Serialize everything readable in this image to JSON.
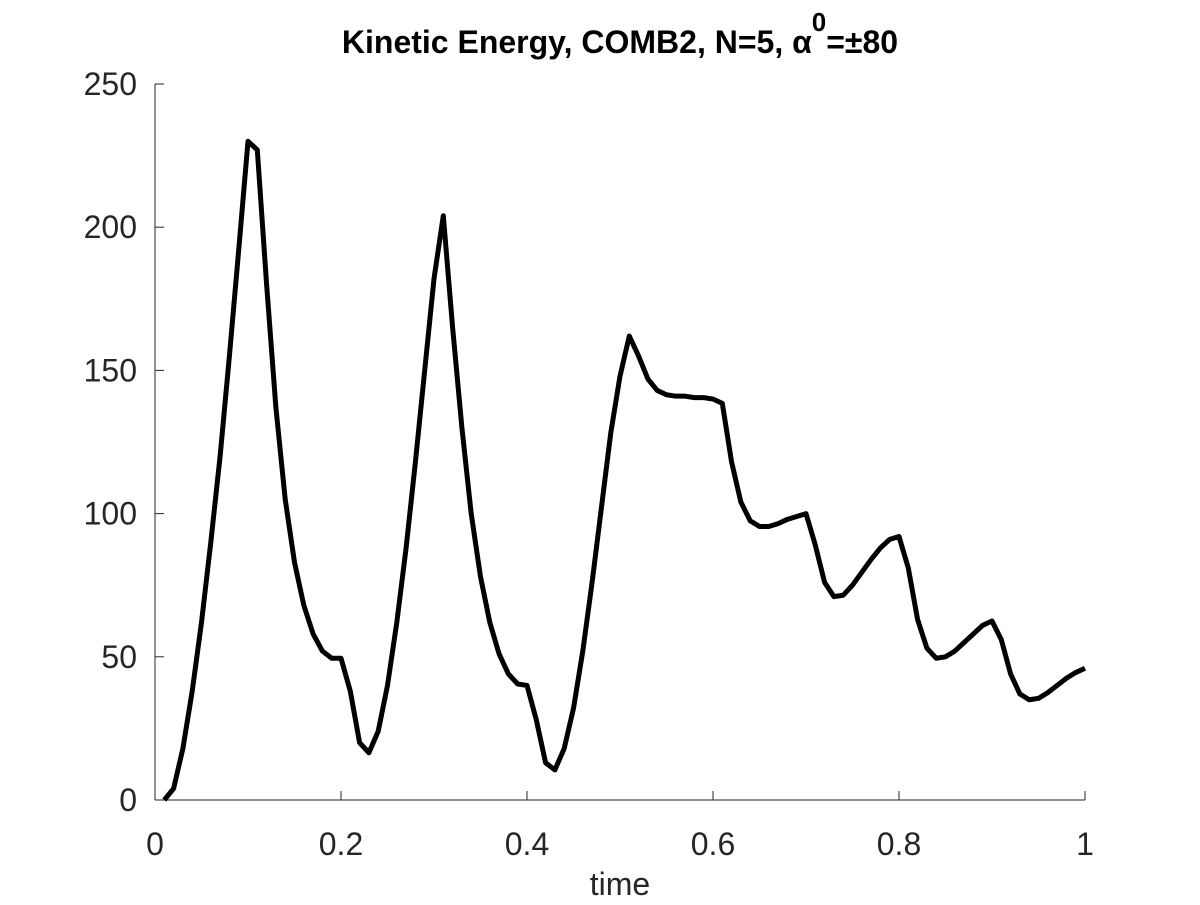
{
  "chart_data": {
    "type": "line",
    "title": [
      "Kinetic Energy, COMB2, N=5, α",
      "0",
      "=±80"
    ],
    "xlabel": "time",
    "xlim": [
      0,
      1
    ],
    "xticks": [
      0,
      0.2,
      0.4,
      0.6,
      0.8,
      1
    ],
    "ylim": [
      0,
      250
    ],
    "yticks": [
      0,
      50,
      100,
      150,
      200,
      250
    ],
    "grid": false,
    "x": [
      0.01,
      0.02,
      0.03,
      0.04,
      0.05,
      0.06,
      0.07,
      0.08,
      0.09,
      0.1,
      0.11,
      0.12,
      0.13,
      0.14,
      0.15,
      0.16,
      0.17,
      0.18,
      0.19,
      0.2,
      0.21,
      0.22,
      0.23,
      0.24,
      0.25,
      0.26,
      0.27,
      0.28,
      0.29,
      0.3,
      0.31,
      0.32,
      0.33,
      0.34,
      0.35,
      0.36,
      0.37,
      0.38,
      0.39,
      0.4,
      0.41,
      0.42,
      0.43,
      0.44,
      0.45,
      0.46,
      0.47,
      0.48,
      0.49,
      0.5,
      0.51,
      0.52,
      0.53,
      0.54,
      0.55,
      0.56,
      0.57,
      0.58,
      0.59,
      0.6,
      0.61,
      0.62,
      0.63,
      0.64,
      0.65,
      0.66,
      0.67,
      0.68,
      0.69,
      0.7,
      0.71,
      0.72,
      0.73,
      0.74,
      0.75,
      0.76,
      0.77,
      0.78,
      0.79,
      0.8,
      0.81,
      0.82,
      0.83,
      0.84,
      0.85,
      0.86,
      0.87,
      0.88,
      0.89,
      0.9,
      0.91,
      0.92,
      0.93,
      0.94,
      0.95,
      0.96,
      0.97,
      0.98,
      0.99,
      1.0
    ],
    "series": [
      {
        "name": "Kinetic Energy",
        "color": "#000000",
        "values": [
          0,
          4,
          18,
          38,
          62,
          90,
          120,
          155,
          192,
          230,
          227,
          180,
          137,
          105,
          83,
          68,
          58,
          52,
          49.5,
          49.5,
          38,
          20,
          16.5,
          24,
          40,
          62,
          88,
          118,
          150,
          182,
          204,
          165,
          130,
          100,
          78,
          62,
          51,
          44,
          40.5,
          40,
          28,
          13,
          10.5,
          18,
          32,
          52,
          76,
          102,
          128,
          148,
          162,
          155,
          147,
          143,
          141.5,
          141,
          141,
          140.5,
          140.5,
          140,
          138.5,
          118,
          104,
          97.5,
          95.5,
          95.5,
          96.5,
          98,
          99,
          100,
          89,
          76,
          71,
          71.5,
          75,
          79.5,
          84,
          88,
          91,
          92,
          81,
          63,
          53,
          49.5,
          50,
          52,
          55,
          58,
          61,
          62.5,
          56,
          44,
          37,
          35,
          35.5,
          37.5,
          40,
          42.5,
          44.5,
          46
        ]
      }
    ]
  }
}
